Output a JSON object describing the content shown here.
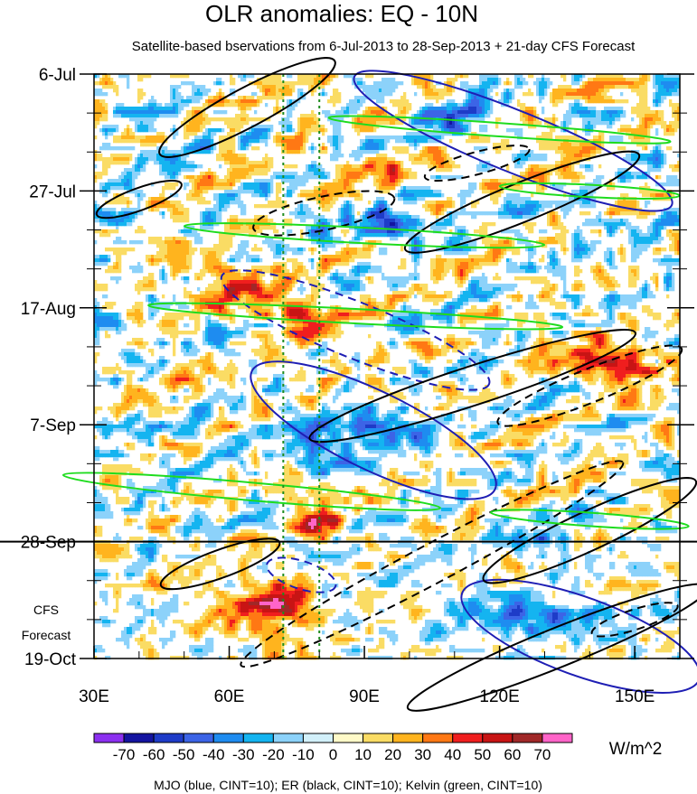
{
  "chart_data": {
    "type": "heatmap",
    "title": "OLR anomalies: EQ - 10N",
    "subtitle": "Satellite-based bservations from 6-Jul-2013 to 28-Sep-2013 + 21-day CFS Forecast",
    "x_range": [
      30,
      160
    ],
    "x_ticks": [
      {
        "value": 30,
        "label": "30E"
      },
      {
        "value": 60,
        "label": "60E"
      },
      {
        "value": 90,
        "label": "90E"
      },
      {
        "value": 120,
        "label": "120E"
      },
      {
        "value": 150,
        "label": "150E"
      }
    ],
    "y_range_days": [
      0,
      105
    ],
    "y_ticks": [
      {
        "day": 0,
        "label": "6-Jul"
      },
      {
        "day": 21,
        "label": "27-Jul"
      },
      {
        "day": 42,
        "label": "17-Aug"
      },
      {
        "day": 63,
        "label": "7-Sep"
      },
      {
        "day": 84,
        "label": "28-Sep"
      },
      {
        "day": 105,
        "label": "19-Oct"
      }
    ],
    "forecast_start_day": 84,
    "forecast_label_line1": "CFS",
    "forecast_label_line2": "Forecast",
    "colorbar": {
      "unit": "W/m^2",
      "levels": [
        -70,
        -60,
        -50,
        -40,
        -30,
        -20,
        -10,
        0,
        10,
        20,
        30,
        40,
        50,
        60,
        70
      ],
      "labels": [
        "-70",
        "-60",
        "-50",
        "-40",
        "-30",
        "-20",
        "-10",
        "0",
        "10",
        "20",
        "30",
        "40",
        "50",
        "60",
        "70"
      ],
      "colors": [
        "#8c30f0",
        "#1414a0",
        "#1e3cc8",
        "#3c64e6",
        "#1e8cf0",
        "#14b4f0",
        "#8cd2fa",
        "#d2f0fa",
        "#fffac8",
        "#fadc64",
        "#ffb41e",
        "#ff7814",
        "#f01e1e",
        "#c81414",
        "#a02828",
        "#ff64c8"
      ]
    },
    "vertical_reference_lons": [
      72,
      80
    ],
    "contours": [
      {
        "wave": "MJO",
        "color": "#1e1eb4",
        "cx": 123,
        "cy": 12,
        "rx": 38,
        "ry": 5.5,
        "angle": 22,
        "dashed": false
      },
      {
        "wave": "MJO",
        "color": "#1e1eb4",
        "cx": 92,
        "cy": 64,
        "rx": 30,
        "ry": 7,
        "angle": 26,
        "dashed": false
      },
      {
        "wave": "MJO",
        "color": "#1e1eb4",
        "cx": 88,
        "cy": 46,
        "rx": 32,
        "ry": 5,
        "angle": 22,
        "dashed": true
      },
      {
        "wave": "MJO",
        "color": "#1e1eb4",
        "cx": 76,
        "cy": 90,
        "rx": 8,
        "ry": 2.5,
        "angle": 18,
        "dashed": true
      },
      {
        "wave": "MJO",
        "color": "#1e1eb4",
        "cx": 138,
        "cy": 101,
        "rx": 28,
        "ry": 7,
        "angle": 20,
        "dashed": false
      },
      {
        "wave": "ER",
        "color": "#000000",
        "cx": 64,
        "cy": 6,
        "rx": 22,
        "ry": 3.5,
        "angle": -28,
        "dashed": false
      },
      {
        "wave": "ER",
        "color": "#000000",
        "cx": 40,
        "cy": 22.5,
        "rx": 10,
        "ry": 2,
        "angle": -20,
        "dashed": false
      },
      {
        "wave": "ER",
        "color": "#000000",
        "cx": 81,
        "cy": 25,
        "rx": 16,
        "ry": 3,
        "angle": -12,
        "dashed": true
      },
      {
        "wave": "ER",
        "color": "#000000",
        "cx": 125,
        "cy": 23,
        "rx": 28,
        "ry": 3.5,
        "angle": -22,
        "dashed": false
      },
      {
        "wave": "ER",
        "color": "#000000",
        "cx": 115,
        "cy": 16,
        "rx": 12,
        "ry": 2,
        "angle": -15,
        "dashed": true
      },
      {
        "wave": "ER",
        "color": "#000000",
        "cx": 114,
        "cy": 56,
        "rx": 38,
        "ry": 3.5,
        "angle": -18,
        "dashed": false
      },
      {
        "wave": "ER",
        "color": "#000000",
        "cx": 140,
        "cy": 56,
        "rx": 22,
        "ry": 3,
        "angle": -22,
        "dashed": true
      },
      {
        "wave": "ER",
        "color": "#000000",
        "cx": 105,
        "cy": 88,
        "rx": 48,
        "ry": 3.5,
        "angle": -28,
        "dashed": true
      },
      {
        "wave": "ER",
        "color": "#000000",
        "cx": 58,
        "cy": 88,
        "rx": 14,
        "ry": 2.5,
        "angle": -20,
        "dashed": false
      },
      {
        "wave": "ER",
        "color": "#000000",
        "cx": 140,
        "cy": 82,
        "rx": 26,
        "ry": 3.5,
        "angle": -25,
        "dashed": false
      },
      {
        "wave": "ER",
        "color": "#000000",
        "cx": 133,
        "cy": 103,
        "rx": 36,
        "ry": 3.5,
        "angle": -22,
        "dashed": false
      },
      {
        "wave": "ER",
        "color": "#000000",
        "cx": 150,
        "cy": 98,
        "rx": 10,
        "ry": 1.8,
        "angle": -18,
        "dashed": true
      },
      {
        "wave": "Kelvin",
        "color": "#1edc1e",
        "cx": 120,
        "cy": 10,
        "rx": 38,
        "ry": 1.2,
        "angle": 4,
        "dashed": false
      },
      {
        "wave": "Kelvin",
        "color": "#1edc1e",
        "cx": 90,
        "cy": 29,
        "rx": 40,
        "ry": 1.4,
        "angle": 3,
        "dashed": false
      },
      {
        "wave": "Kelvin",
        "color": "#1edc1e",
        "cx": 88,
        "cy": 43.5,
        "rx": 46,
        "ry": 1.3,
        "angle": 3,
        "dashed": false
      },
      {
        "wave": "Kelvin",
        "color": "#1edc1e",
        "cx": 65,
        "cy": 75,
        "rx": 42,
        "ry": 1.6,
        "angle": 5,
        "dashed": false
      },
      {
        "wave": "Kelvin",
        "color": "#1edc1e",
        "cx": 140,
        "cy": 80,
        "rx": 22,
        "ry": 1.2,
        "angle": 4,
        "dashed": false
      },
      {
        "wave": "Kelvin",
        "color": "#1edc1e",
        "cx": 140,
        "cy": 21,
        "rx": 20,
        "ry": 1.1,
        "angle": 3,
        "dashed": false
      }
    ],
    "hotspots": [
      {
        "lon": 72,
        "day": 95,
        "value": 52,
        "s_lon": 6,
        "s_day": 4
      },
      {
        "lon": 80,
        "day": 81,
        "value": 55,
        "s_lon": 6,
        "s_day": 2.5
      },
      {
        "lon": 75,
        "day": 43,
        "value": 42,
        "s_lon": 8,
        "s_day": 3
      },
      {
        "lon": 63,
        "day": 38,
        "value": 34,
        "s_lon": 8,
        "s_day": 4
      },
      {
        "lon": 145,
        "day": 52,
        "value": 48,
        "s_lon": 10,
        "s_day": 4
      },
      {
        "lon": 97,
        "day": 18,
        "value": 32,
        "s_lon": 9,
        "s_day": 3
      },
      {
        "lon": 66,
        "day": 97,
        "value": 32,
        "s_lon": 12,
        "s_day": 7
      },
      {
        "lon": 95,
        "day": 63,
        "value": -55,
        "s_lon": 8,
        "s_day": 3
      },
      {
        "lon": 97,
        "day": 27,
        "value": -45,
        "s_lon": 7,
        "s_day": 3
      },
      {
        "lon": 128,
        "day": 98,
        "value": -60,
        "s_lon": 14,
        "s_day": 3
      },
      {
        "lon": 127,
        "day": 84,
        "value": -40,
        "s_lon": 8,
        "s_day": 2
      },
      {
        "lon": 110,
        "day": 8,
        "value": -38,
        "s_lon": 8,
        "s_day": 2.5
      },
      {
        "lon": 80,
        "day": 67,
        "value": -30,
        "s_lon": 10,
        "s_day": 4
      },
      {
        "lon": 35,
        "day": 26,
        "value": -25,
        "s_lon": 6,
        "s_day": 3
      }
    ],
    "legend_note": "MJO (blue, CINT=10); ER (black, CINT=10); Kelvin (green, CINT=10)"
  }
}
